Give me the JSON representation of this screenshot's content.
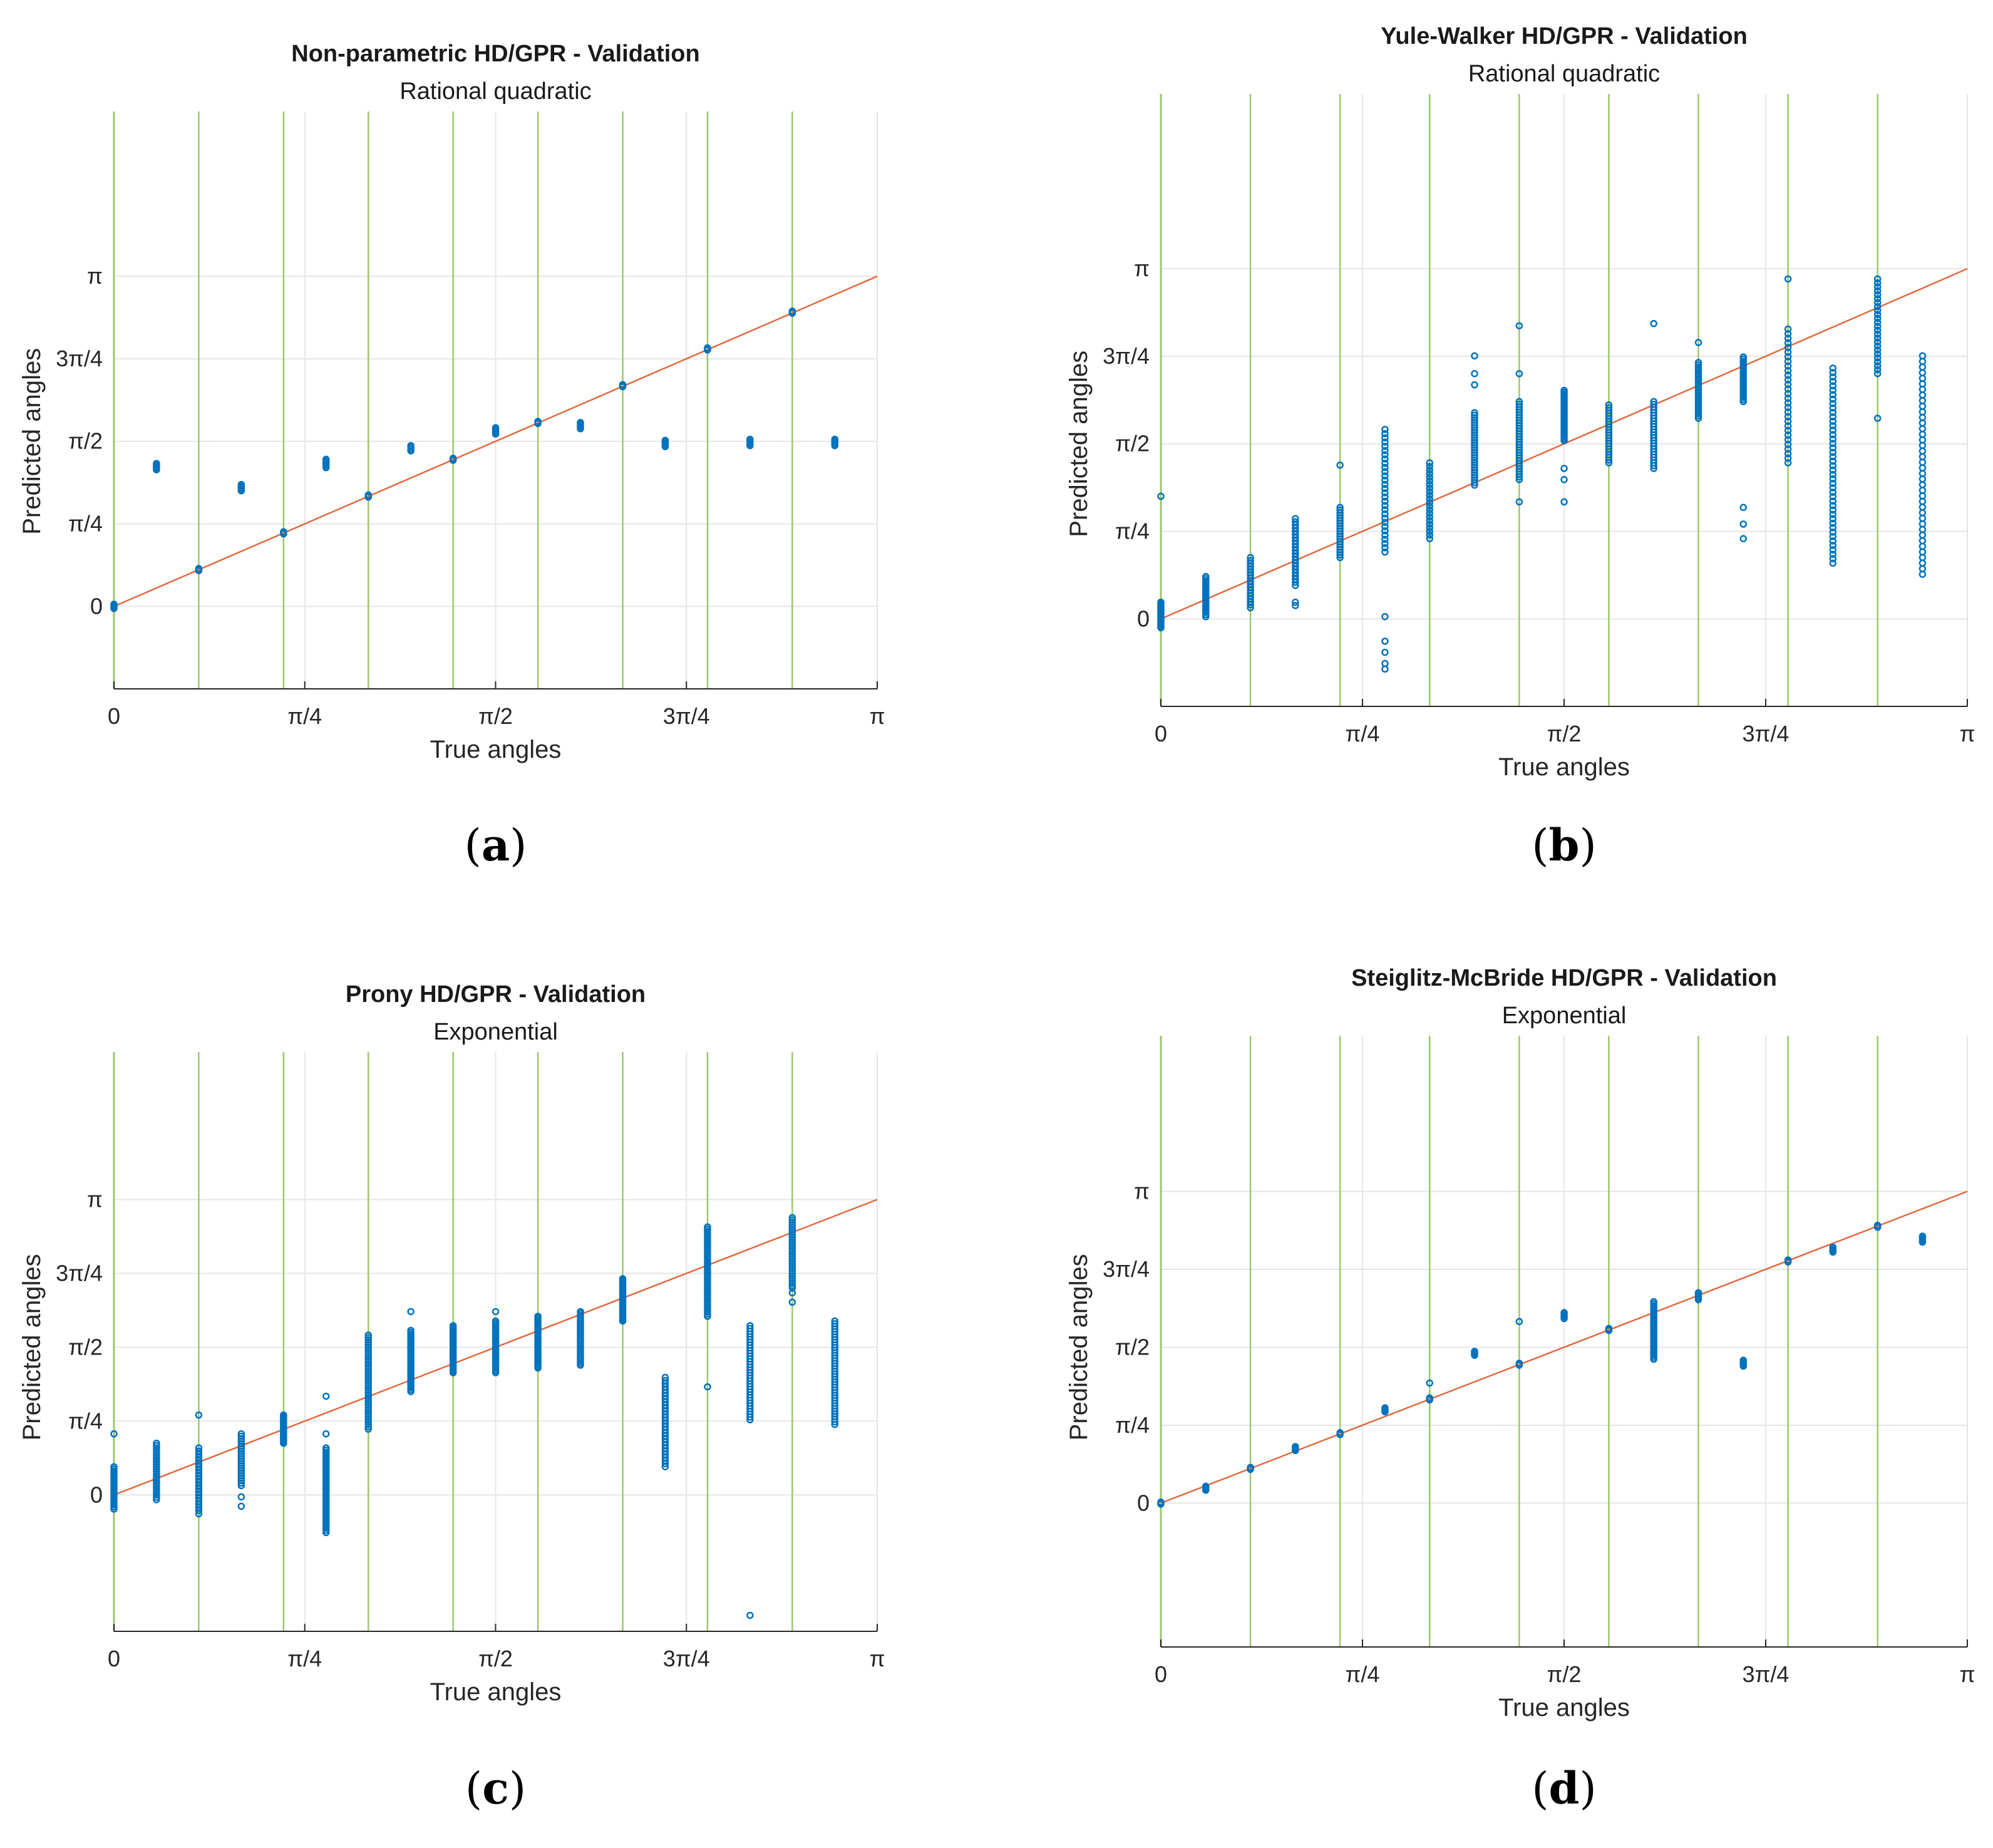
{
  "colors": {
    "points": "#0072bd",
    "identity_line": "#e06a3f",
    "class_boundary": "#9bc76b",
    "grid": "#e6e6e6",
    "axis": "#262626"
  },
  "chart_data": [
    {
      "type": "scatter",
      "panel_label": "a",
      "title": "Non-parametric HD/GPR - Validation",
      "subtitle": "Rational quadratic",
      "xlabel": "True angles",
      "ylabel": "Predicted angles",
      "xlim": [
        0,
        3.14159
      ],
      "ylim": [
        -0.785,
        4.71
      ],
      "xticks": [
        0,
        0.7854,
        1.5708,
        2.3562,
        3.14159
      ],
      "xticklabels": [
        "0",
        "π/4",
        "π/2",
        "3π/4",
        "π"
      ],
      "yticks": [
        0,
        0.7854,
        1.5708,
        2.3562,
        3.14159
      ],
      "yticklabels": [
        "0",
        "π/4",
        "π/2",
        "3π/4",
        "π"
      ],
      "class_boundaries": [
        0.349,
        0.698,
        1.047,
        1.396,
        1.745,
        2.094,
        2.443,
        2.792
      ],
      "identity_line": true,
      "clusters": [
        {
          "x": 0.0,
          "y_min": -0.02,
          "y_max": 0.02,
          "n": 4
        },
        {
          "x": 0.175,
          "y_min": 1.3,
          "y_max": 1.36,
          "n": 5
        },
        {
          "x": 0.349,
          "y_min": 0.34,
          "y_max": 0.36,
          "n": 3
        },
        {
          "x": 0.524,
          "y_min": 1.1,
          "y_max": 1.16,
          "n": 5
        },
        {
          "x": 0.698,
          "y_min": 0.69,
          "y_max": 0.71,
          "n": 3
        },
        {
          "x": 0.873,
          "y_min": 1.32,
          "y_max": 1.4,
          "n": 6
        },
        {
          "x": 1.047,
          "y_min": 1.04,
          "y_max": 1.06,
          "n": 3
        },
        {
          "x": 1.222,
          "y_min": 1.48,
          "y_max": 1.53,
          "n": 4
        },
        {
          "x": 1.396,
          "y_min": 1.39,
          "y_max": 1.41,
          "n": 3
        },
        {
          "x": 1.571,
          "y_min": 1.64,
          "y_max": 1.7,
          "n": 5
        },
        {
          "x": 1.745,
          "y_min": 1.74,
          "y_max": 1.76,
          "n": 3
        },
        {
          "x": 1.92,
          "y_min": 1.69,
          "y_max": 1.75,
          "n": 5
        },
        {
          "x": 2.094,
          "y_min": 2.09,
          "y_max": 2.11,
          "n": 3
        },
        {
          "x": 2.269,
          "y_min": 1.52,
          "y_max": 1.58,
          "n": 5
        },
        {
          "x": 2.443,
          "y_min": 2.44,
          "y_max": 2.46,
          "n": 3
        },
        {
          "x": 2.618,
          "y_min": 1.53,
          "y_max": 1.59,
          "n": 5
        },
        {
          "x": 2.792,
          "y_min": 2.79,
          "y_max": 2.81,
          "n": 3
        },
        {
          "x": 2.967,
          "y_min": 1.53,
          "y_max": 1.59,
          "n": 5
        }
      ]
    },
    {
      "type": "scatter",
      "panel_label": "b",
      "title": "Yule-Walker HD/GPR - Validation",
      "subtitle": "Rational quadratic",
      "xlabel": "True angles",
      "ylabel": "Predicted angles",
      "xlim": [
        0,
        3.14159
      ],
      "ylim": [
        -0.785,
        4.71
      ],
      "xticks": [
        0,
        0.7854,
        1.5708,
        2.3562,
        3.14159
      ],
      "xticklabels": [
        "0",
        "π/4",
        "π/2",
        "3π/4",
        "π"
      ],
      "yticks": [
        0,
        0.7854,
        1.5708,
        2.3562,
        3.14159
      ],
      "yticklabels": [
        "0",
        "π/4",
        "π/2",
        "3π/4",
        "π"
      ],
      "class_boundaries": [
        0.349,
        0.698,
        1.047,
        1.396,
        1.745,
        2.094,
        2.443,
        2.792
      ],
      "identity_line": true,
      "clusters": [
        {
          "x": 0.0,
          "y_min": -0.08,
          "y_max": 0.15,
          "n": 18,
          "outliers": [
            1.1
          ]
        },
        {
          "x": 0.175,
          "y_min": 0.02,
          "y_max": 0.38,
          "n": 20
        },
        {
          "x": 0.349,
          "y_min": 0.1,
          "y_max": 0.55,
          "n": 18
        },
        {
          "x": 0.524,
          "y_min": 0.3,
          "y_max": 0.9,
          "n": 22,
          "outliers": [
            0.12,
            0.15
          ]
        },
        {
          "x": 0.698,
          "y_min": 0.55,
          "y_max": 1.0,
          "n": 20,
          "outliers": [
            1.38
          ]
        },
        {
          "x": 0.873,
          "y_min": 0.6,
          "y_max": 1.7,
          "n": 30,
          "outliers": [
            -0.45,
            -0.4,
            -0.3,
            -0.2,
            0.02
          ]
        },
        {
          "x": 1.047,
          "y_min": 0.72,
          "y_max": 1.4,
          "n": 22
        },
        {
          "x": 1.222,
          "y_min": 1.2,
          "y_max": 1.85,
          "n": 30,
          "outliers": [
            2.1,
            2.2,
            2.36
          ]
        },
        {
          "x": 1.396,
          "y_min": 1.25,
          "y_max": 1.95,
          "n": 30,
          "outliers": [
            1.05,
            2.2,
            2.63
          ]
        },
        {
          "x": 1.571,
          "y_min": 1.6,
          "y_max": 2.05,
          "n": 30,
          "outliers": [
            1.05,
            1.25,
            1.35
          ]
        },
        {
          "x": 1.745,
          "y_min": 1.4,
          "y_max": 1.92,
          "n": 22
        },
        {
          "x": 1.92,
          "y_min": 1.35,
          "y_max": 1.95,
          "n": 25,
          "outliers": [
            2.65
          ]
        },
        {
          "x": 2.094,
          "y_min": 1.8,
          "y_max": 2.3,
          "n": 25,
          "outliers": [
            2.48
          ]
        },
        {
          "x": 2.269,
          "y_min": 1.95,
          "y_max": 2.35,
          "n": 22,
          "outliers": [
            0.72,
            0.85,
            1.0
          ]
        },
        {
          "x": 2.443,
          "y_min": 1.4,
          "y_max": 2.6,
          "n": 30,
          "outliers": [
            3.05
          ]
        },
        {
          "x": 2.618,
          "y_min": 0.5,
          "y_max": 2.25,
          "n": 45
        },
        {
          "x": 2.792,
          "y_min": 2.2,
          "y_max": 3.05,
          "n": 25,
          "outliers": [
            1.8
          ]
        },
        {
          "x": 2.967,
          "y_min": 0.4,
          "y_max": 2.36,
          "n": 40
        }
      ]
    },
    {
      "type": "scatter",
      "panel_label": "c",
      "title": "Prony HD/GPR - Validation",
      "subtitle": "Exponential",
      "xlabel": "True angles",
      "ylabel": "Predicted angles",
      "xlim": [
        0,
        3.14159
      ],
      "ylim": [
        -1.45,
        4.71
      ],
      "xticks": [
        0,
        0.7854,
        1.5708,
        2.3562,
        3.14159
      ],
      "xticklabels": [
        "0",
        "π/4",
        "π/2",
        "3π/4",
        "π"
      ],
      "yticks": [
        0,
        0.7854,
        1.5708,
        2.3562,
        3.14159
      ],
      "yticklabels": [
        "0",
        "π/4",
        "π/2",
        "3π/4",
        "π"
      ],
      "class_boundaries": [
        0.349,
        0.698,
        1.047,
        1.396,
        1.745,
        2.094,
        2.443,
        2.792
      ],
      "identity_line": true,
      "clusters": [
        {
          "x": 0.0,
          "y_min": -0.15,
          "y_max": 0.3,
          "n": 20,
          "outliers": [
            0.65
          ]
        },
        {
          "x": 0.175,
          "y_min": -0.05,
          "y_max": 0.55,
          "n": 25
        },
        {
          "x": 0.349,
          "y_min": -0.2,
          "y_max": 0.5,
          "n": 22,
          "outliers": [
            0.85
          ]
        },
        {
          "x": 0.524,
          "y_min": 0.1,
          "y_max": 0.65,
          "n": 22,
          "outliers": [
            -0.12,
            -0.02
          ]
        },
        {
          "x": 0.698,
          "y_min": 0.55,
          "y_max": 0.85,
          "n": 22
        },
        {
          "x": 0.873,
          "y_min": -0.4,
          "y_max": 0.5,
          "n": 40,
          "outliers": [
            0.65,
            1.05
          ]
        },
        {
          "x": 1.047,
          "y_min": 0.7,
          "y_max": 1.7,
          "n": 40
        },
        {
          "x": 1.222,
          "y_min": 1.1,
          "y_max": 1.75,
          "n": 32,
          "outliers": [
            1.95
          ]
        },
        {
          "x": 1.396,
          "y_min": 1.3,
          "y_max": 1.8,
          "n": 30
        },
        {
          "x": 1.571,
          "y_min": 1.3,
          "y_max": 1.85,
          "n": 30,
          "outliers": [
            1.95
          ]
        },
        {
          "x": 1.745,
          "y_min": 1.35,
          "y_max": 1.9,
          "n": 30
        },
        {
          "x": 1.92,
          "y_min": 1.38,
          "y_max": 1.95,
          "n": 30
        },
        {
          "x": 2.094,
          "y_min": 1.85,
          "y_max": 2.3,
          "n": 30
        },
        {
          "x": 2.269,
          "y_min": 0.3,
          "y_max": 1.25,
          "n": 30
        },
        {
          "x": 2.443,
          "y_min": 1.9,
          "y_max": 2.85,
          "n": 40,
          "outliers": [
            1.15
          ]
        },
        {
          "x": 2.618,
          "y_min": 0.8,
          "y_max": 1.8,
          "n": 35,
          "outliers": [
            -1.28
          ]
        },
        {
          "x": 2.792,
          "y_min": 2.2,
          "y_max": 2.95,
          "n": 30,
          "outliers": [
            2.05,
            2.15
          ]
        },
        {
          "x": 2.967,
          "y_min": 0.75,
          "y_max": 1.85,
          "n": 40
        }
      ]
    },
    {
      "type": "scatter",
      "panel_label": "d",
      "title": "Steiglitz-McBride HD/GPR - Validation",
      "subtitle": "Exponential",
      "xlabel": "True angles",
      "ylabel": "Predicted angles",
      "xlim": [
        0,
        3.14159
      ],
      "ylim": [
        -1.45,
        4.71
      ],
      "xticks": [
        0,
        0.7854,
        1.5708,
        2.3562,
        3.14159
      ],
      "xticklabels": [
        "0",
        "π/4",
        "π/2",
        "3π/4",
        "π"
      ],
      "yticks": [
        0,
        0.7854,
        1.5708,
        2.3562,
        3.14159
      ],
      "yticklabels": [
        "0",
        "π/4",
        "π/2",
        "3π/4",
        "π"
      ],
      "class_boundaries": [
        0.349,
        0.698,
        1.047,
        1.396,
        1.745,
        2.094,
        2.443,
        2.792
      ],
      "identity_line": true,
      "clusters": [
        {
          "x": 0.0,
          "y_min": -0.01,
          "y_max": 0.01,
          "n": 3
        },
        {
          "x": 0.175,
          "y_min": 0.13,
          "y_max": 0.17,
          "n": 4
        },
        {
          "x": 0.349,
          "y_min": 0.34,
          "y_max": 0.36,
          "n": 3
        },
        {
          "x": 0.524,
          "y_min": 0.53,
          "y_max": 0.57,
          "n": 4
        },
        {
          "x": 0.698,
          "y_min": 0.69,
          "y_max": 0.71,
          "n": 3
        },
        {
          "x": 0.873,
          "y_min": 0.92,
          "y_max": 0.96,
          "n": 4
        },
        {
          "x": 1.047,
          "y_min": 1.04,
          "y_max": 1.06,
          "n": 3,
          "outliers": [
            1.21
          ]
        },
        {
          "x": 1.222,
          "y_min": 1.49,
          "y_max": 1.53,
          "n": 4
        },
        {
          "x": 1.396,
          "y_min": 1.39,
          "y_max": 1.41,
          "n": 3,
          "outliers": [
            1.83
          ]
        },
        {
          "x": 1.571,
          "y_min": 1.86,
          "y_max": 1.92,
          "n": 5
        },
        {
          "x": 1.745,
          "y_min": 1.74,
          "y_max": 1.76,
          "n": 3
        },
        {
          "x": 1.92,
          "y_min": 1.45,
          "y_max": 2.03,
          "n": 30
        },
        {
          "x": 2.094,
          "y_min": 2.05,
          "y_max": 2.12,
          "n": 5
        },
        {
          "x": 2.269,
          "y_min": 1.38,
          "y_max": 1.44,
          "n": 5
        },
        {
          "x": 2.443,
          "y_min": 2.43,
          "y_max": 2.45,
          "n": 3
        },
        {
          "x": 2.618,
          "y_min": 2.53,
          "y_max": 2.58,
          "n": 5
        },
        {
          "x": 2.792,
          "y_min": 2.78,
          "y_max": 2.8,
          "n": 3
        },
        {
          "x": 2.967,
          "y_min": 2.63,
          "y_max": 2.69,
          "n": 5
        }
      ]
    }
  ]
}
